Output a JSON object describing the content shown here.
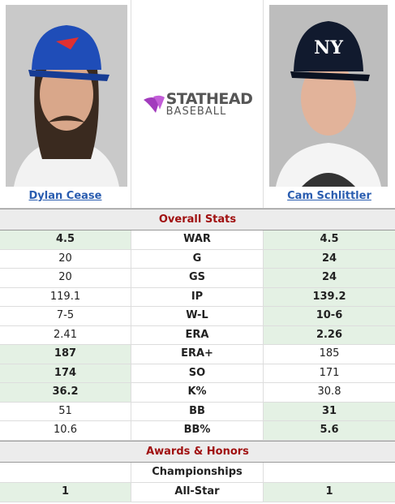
{
  "players": [
    {
      "name": "Dylan Cease"
    },
    {
      "name": "Cam Schlittler"
    }
  ],
  "logo": {
    "top": "STATHEAD",
    "bottom": "BASEBALL"
  },
  "sections": [
    {
      "title": "Overall Stats",
      "rows": [
        {
          "stat": "WAR",
          "left": "4.5",
          "right": "4.5",
          "highlight": "both"
        },
        {
          "stat": "G",
          "left": "20",
          "right": "24",
          "highlight": "right"
        },
        {
          "stat": "GS",
          "left": "20",
          "right": "24",
          "highlight": "right"
        },
        {
          "stat": "IP",
          "left": "119.1",
          "right": "139.2",
          "highlight": "right"
        },
        {
          "stat": "W-L",
          "left": "7-5",
          "right": "10-6",
          "highlight": "right"
        },
        {
          "stat": "ERA",
          "left": "2.41",
          "right": "2.26",
          "highlight": "right"
        },
        {
          "stat": "ERA+",
          "left": "187",
          "right": "185",
          "highlight": "left"
        },
        {
          "stat": "SO",
          "left": "174",
          "right": "171",
          "highlight": "left"
        },
        {
          "stat": "K%",
          "left": "36.2",
          "right": "30.8",
          "highlight": "left"
        },
        {
          "stat": "BB",
          "left": "51",
          "right": "31",
          "highlight": "right"
        },
        {
          "stat": "BB%",
          "left": "10.6",
          "right": "5.6",
          "highlight": "right"
        }
      ]
    },
    {
      "title": "Awards & Honors",
      "subheading": "Championships",
      "rows": [
        {
          "stat": "All-Star",
          "left": "1",
          "right": "1",
          "highlight": "both"
        }
      ]
    }
  ]
}
